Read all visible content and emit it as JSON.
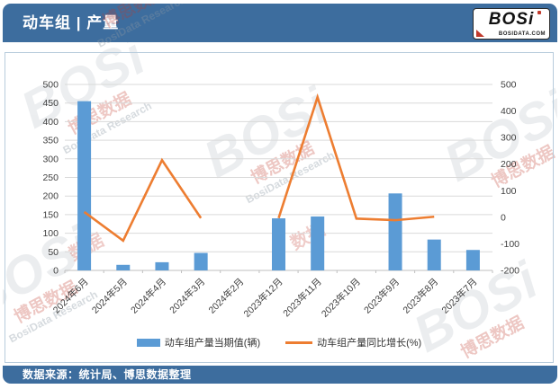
{
  "header": {
    "title": "动车组 | 产量",
    "logo": {
      "text": "BOSi",
      "subtext": "BOSIDATA.COM"
    }
  },
  "footer": {
    "source": "数据来源：统计局、博思数据整理"
  },
  "watermark": {
    "brand": "BOSi",
    "cn": "博思数据",
    "en": "BosiData Research",
    "word": "数据"
  },
  "colors": {
    "header_bg": "#3D6D9E",
    "bar": "#5B9BD5",
    "line": "#ED7D31",
    "grid": "#D9D9D9",
    "axis": "#BFBFBF",
    "card_border": "#B8CCDC"
  },
  "chart_data": {
    "type": "bar",
    "subtype": "bar+line combo",
    "categories": [
      "2024年6月",
      "2024年5月",
      "2024年4月",
      "2024年3月",
      "2024年2月",
      "2023年12月",
      "2023年11月",
      "2023年10月",
      "2023年9月",
      "2023年8月",
      "2023年7月"
    ],
    "series": [
      {
        "name": "动车组产量当期值(辆)",
        "type": "bar",
        "axis": "left",
        "color": "#5B9BD5",
        "values": [
          455,
          15,
          22,
          47,
          null,
          140,
          145,
          null,
          207,
          83,
          55
        ]
      },
      {
        "name": "动车组产量同比增长(%)",
        "type": "line",
        "axis": "right",
        "color": "#ED7D31",
        "values": [
          20,
          -88,
          215,
          -3,
          null,
          -3,
          452,
          -5,
          -11,
          2,
          null
        ]
      }
    ],
    "left_axis": {
      "min": 0,
      "max": 500,
      "step": 50,
      "ticks": [
        0,
        50,
        100,
        150,
        200,
        250,
        300,
        350,
        400,
        450,
        500
      ]
    },
    "right_axis": {
      "min": -200,
      "max": 500,
      "step": 100,
      "ticks": [
        -200,
        -100,
        0,
        100,
        200,
        300,
        400,
        500
      ]
    },
    "grid": true,
    "legend_position": "bottom",
    "title": "动车组 | 产量"
  }
}
